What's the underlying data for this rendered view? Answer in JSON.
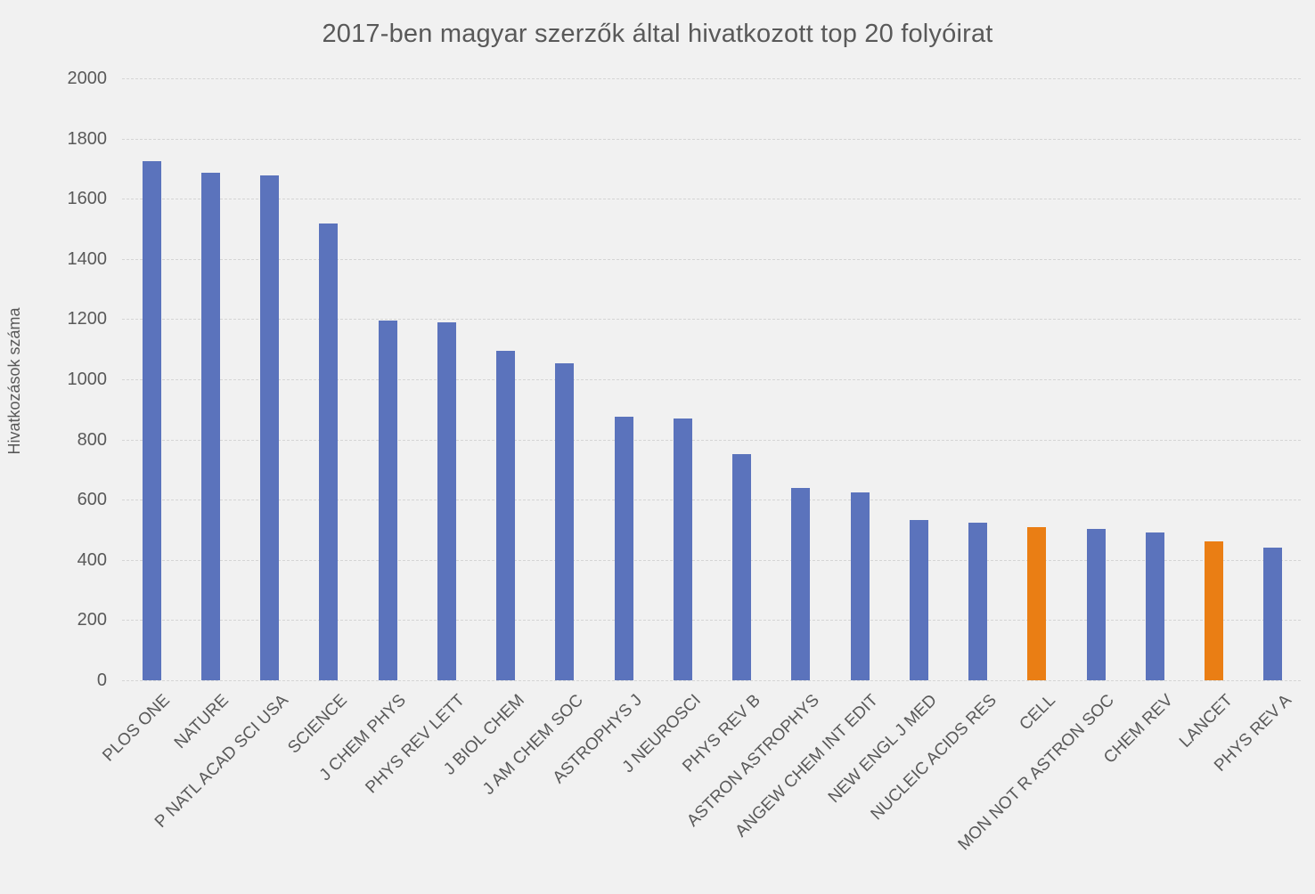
{
  "page": {
    "background_color": "#F1F1F1",
    "text_color": "#595959",
    "gridline_color": "#D5D5D5"
  },
  "chart_data": {
    "type": "bar",
    "title": "2017-ben magyar szerzők által hivatkozott top 20 folyóirat",
    "xlabel": "",
    "ylabel": "Hivatkozások száma",
    "ylim": [
      0,
      2000
    ],
    "ytick_step": 200,
    "yticks": [
      0,
      200,
      400,
      600,
      800,
      1000,
      1200,
      1400,
      1600,
      1800,
      2000
    ],
    "grid": "horizontal-dashed",
    "legend_position": "none",
    "x_tick_label_rotation_deg": 45,
    "categories": [
      "PLOS ONE",
      "NATURE",
      "P NATL ACAD SCI USA",
      "SCIENCE",
      "J CHEM PHYS",
      "PHYS REV LETT",
      "J BIOL CHEM",
      "J AM CHEM SOC",
      "ASTROPHYS J",
      "J NEUROSCI",
      "PHYS REV B",
      "ASTRON ASTROPHYS",
      "ANGEW CHEM INT EDIT",
      "NEW ENGL J MED",
      "NUCLEIC ACIDS RES",
      "CELL",
      "MON NOT R ASTRON SOC",
      "CHEM REV",
      "LANCET",
      "PHYS REV A"
    ],
    "values": [
      1725,
      1685,
      1678,
      1517,
      1194,
      1189,
      1094,
      1053,
      876,
      870,
      753,
      639,
      625,
      534,
      525,
      508,
      504,
      491,
      462,
      442
    ],
    "bar_color_default": "#5B73BC",
    "bar_color_highlight": "#EA7E14",
    "highlighted_categories": [
      "CELL",
      "LANCET"
    ],
    "highlighted_indices": [
      15,
      18
    ]
  }
}
